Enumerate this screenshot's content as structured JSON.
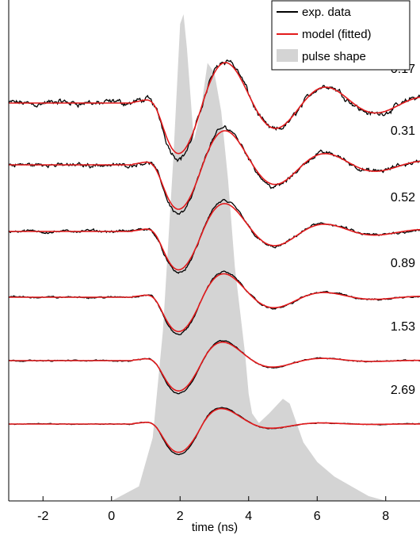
{
  "chart_data": {
    "type": "line",
    "xlabel": "time (ns)",
    "xlim": [
      -3,
      9
    ],
    "xticks": [
      -2,
      0,
      2,
      4,
      6,
      8
    ],
    "legend": {
      "position": "top-right",
      "entries": [
        {
          "label": "exp. data",
          "color": "#000000",
          "kind": "line"
        },
        {
          "label": "model (fitted)",
          "color": "#e31a1c",
          "kind": "line"
        },
        {
          "label": "pulse shape",
          "color": "#d4d4d4",
          "kind": "patch"
        }
      ]
    },
    "colors": {
      "data": "#000000",
      "model": "#e31a1c",
      "pulse": "#d4d4d4"
    },
    "pulse_shape": {
      "x": [
        -3,
        0.0,
        0.8,
        1.2,
        1.5,
        1.8,
        2.0,
        2.1,
        2.2,
        2.4,
        2.6,
        2.8,
        3.0,
        3.2,
        3.4,
        3.6,
        3.8,
        3.9,
        4.0,
        4.1,
        4.3,
        4.6,
        5.0,
        5.2,
        5.6,
        6.0,
        6.5,
        7.0,
        7.5,
        8.0,
        9.0
      ],
      "y": [
        0,
        0,
        0.03,
        0.13,
        0.35,
        0.7,
        0.98,
        1.0,
        0.93,
        0.74,
        0.8,
        0.9,
        0.88,
        0.8,
        0.66,
        0.48,
        0.36,
        0.3,
        0.22,
        0.18,
        0.16,
        0.18,
        0.21,
        0.2,
        0.12,
        0.08,
        0.05,
        0.03,
        0.01,
        0.0,
        0
      ]
    },
    "traces": [
      {
        "label": "0.17",
        "baseline": 130,
        "amplitude": 0.25,
        "damping": 0.32,
        "noise": 0.35
      },
      {
        "label": "0.31",
        "baseline": 208,
        "amplitude": 0.22,
        "damping": 0.38,
        "noise": 0.27
      },
      {
        "label": "0.52",
        "baseline": 292,
        "amplitude": 0.19,
        "damping": 0.46,
        "noise": 0.17
      },
      {
        "label": "0.89",
        "baseline": 375,
        "amplitude": 0.17,
        "damping": 0.55,
        "noise": 0.11
      },
      {
        "label": "1.53",
        "baseline": 455,
        "amplitude": 0.15,
        "damping": 0.72,
        "noise": 0.07
      },
      {
        "label": "2.69",
        "baseline": 535,
        "amplitude": 0.14,
        "damping": 0.9,
        "noise": 0.05
      }
    ]
  }
}
